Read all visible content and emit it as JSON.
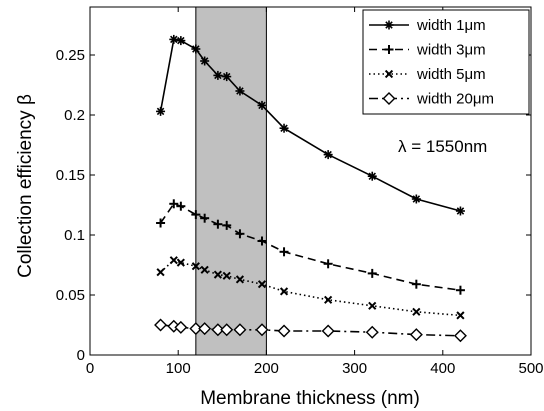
{
  "chart_data": {
    "type": "line",
    "xlabel": "Membrane thickness (nm)",
    "ylabel": "Collection efficiency β",
    "xlim": [
      0,
      500
    ],
    "ylim": [
      0,
      0.29
    ],
    "xticks": [
      0,
      100,
      200,
      300,
      400,
      500
    ],
    "xtick_labels": [
      "0",
      "100",
      "200",
      "300",
      "400",
      "500"
    ],
    "yticks": [
      0,
      0.05,
      0.1,
      0.15,
      0.2,
      0.25
    ],
    "ytick_labels": [
      "0",
      "0.05",
      "0.1",
      "0.15",
      "0.2",
      "0.25"
    ],
    "grid": false,
    "legend_position": "top-right",
    "shaded_region": {
      "x": [
        120,
        200
      ],
      "color": "#c0c0c0"
    },
    "annotation": "λ = 1550nm",
    "series": [
      {
        "name": "width 1μm",
        "line": "solid",
        "marker": "asterisk",
        "x": [
          80,
          95,
          103,
          120,
          130,
          145,
          155,
          170,
          195,
          220,
          270,
          320,
          370,
          420
        ],
        "y": [
          0.203,
          0.263,
          0.262,
          0.255,
          0.245,
          0.233,
          0.232,
          0.22,
          0.208,
          0.189,
          0.167,
          0.149,
          0.13,
          0.12
        ]
      },
      {
        "name": "width 3μm",
        "line": "dashed",
        "marker": "plus",
        "x": [
          80,
          95,
          103,
          120,
          130,
          145,
          155,
          170,
          195,
          220,
          270,
          320,
          370,
          420
        ],
        "y": [
          0.11,
          0.126,
          0.124,
          0.117,
          0.114,
          0.109,
          0.108,
          0.101,
          0.095,
          0.086,
          0.076,
          0.068,
          0.059,
          0.054
        ]
      },
      {
        "name": "width 5μm",
        "line": "dotted",
        "marker": "x",
        "x": [
          80,
          95,
          103,
          120,
          130,
          145,
          155,
          170,
          195,
          220,
          270,
          320,
          370,
          420
        ],
        "y": [
          0.069,
          0.079,
          0.077,
          0.074,
          0.071,
          0.067,
          0.066,
          0.063,
          0.059,
          0.053,
          0.046,
          0.041,
          0.036,
          0.033
        ]
      },
      {
        "name": "width 20μm",
        "line": "dashdot",
        "marker": "diamond",
        "x": [
          80,
          95,
          103,
          120,
          130,
          145,
          155,
          170,
          195,
          220,
          270,
          320,
          370,
          420
        ],
        "y": [
          0.025,
          0.024,
          0.023,
          0.022,
          0.022,
          0.021,
          0.021,
          0.021,
          0.021,
          0.02,
          0.02,
          0.019,
          0.017,
          0.016
        ]
      }
    ]
  }
}
